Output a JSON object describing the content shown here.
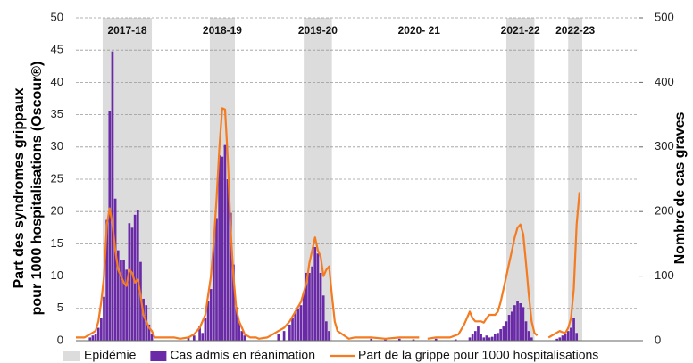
{
  "chart_data": {
    "type": "bar",
    "ylabel": [
      "Part des syndromes grippaux",
      "pour 1000 hospitalisations (Oscour®)"
    ],
    "y2label": "Nombre de cas graves",
    "xlim": [
      0,
      200
    ],
    "ylim": [
      0,
      50
    ],
    "yticks": [
      0,
      5,
      10,
      15,
      20,
      25,
      30,
      35,
      40,
      45,
      50
    ],
    "y2lim": [
      0,
      500
    ],
    "y2ticks": [
      0,
      100,
      200,
      300,
      400,
      500
    ],
    "grid": true,
    "legend": "bottom",
    "bands": {
      "name": "Epidémie",
      "color": "#dcdcdc",
      "periods": [
        {
          "label": "2017-18",
          "x": [
            9.5,
            27
          ]
        },
        {
          "label": "2018-19",
          "x": [
            47.6,
            56.5
          ]
        },
        {
          "label": "2019-20",
          "x": [
            81,
            91
          ]
        },
        {
          "label": "2020- 21",
          "x": null
        },
        {
          "label": "2021-22",
          "x": [
            153,
            163
          ]
        },
        {
          "label": "2022-23",
          "x": [
            175,
            180
          ]
        }
      ]
    },
    "series": [
      {
        "name": "Cas admis en réanimation",
        "type": "bar",
        "axis": "y2",
        "color": "#6a2aa8",
        "x": [
          5,
          6,
          7,
          8,
          9,
          10,
          11,
          12,
          13,
          14,
          15,
          16,
          17,
          18,
          19,
          20,
          21,
          22,
          23,
          24,
          25,
          26,
          27,
          40,
          42,
          44,
          45,
          46,
          47,
          48,
          49,
          50,
          51,
          52,
          53,
          54,
          55,
          56,
          57,
          58,
          59,
          60,
          72,
          74,
          76,
          77,
          78,
          79,
          80,
          81,
          82,
          83,
          84,
          85,
          86,
          87,
          88,
          89,
          90,
          105,
          110,
          115,
          120,
          128,
          135,
          140,
          141,
          142,
          143,
          144,
          145,
          146,
          147,
          148,
          149,
          150,
          151,
          152,
          153,
          154,
          155,
          156,
          157,
          158,
          159,
          160,
          161,
          162,
          171,
          172,
          173,
          174,
          175,
          176,
          177,
          178
        ],
        "values": [
          5,
          8,
          10,
          20,
          35,
          68,
          187,
          355,
          448,
          220,
          140,
          125,
          125,
          110,
          182,
          175,
          195,
          203,
          122,
          65,
          55,
          25,
          10,
          5,
          8,
          22,
          12,
          35,
          62,
          80,
          165,
          190,
          287,
          285,
          303,
          250,
          198,
          118,
          52,
          30,
          15,
          8,
          10,
          15,
          25,
          35,
          45,
          50,
          55,
          75,
          105,
          105,
          115,
          145,
          135,
          105,
          70,
          30,
          15,
          3,
          2,
          3,
          2,
          3,
          2,
          5,
          10,
          15,
          22,
          10,
          5,
          8,
          5,
          6,
          10,
          12,
          18,
          22,
          30,
          40,
          45,
          55,
          62,
          58,
          52,
          30,
          15,
          5,
          3,
          5,
          8,
          10,
          15,
          20,
          35,
          12
        ]
      },
      {
        "name": "Part de la grippe pour 1000 hospitalisations",
        "type": "line",
        "axis": "y",
        "color": "#f47b20",
        "x": [
          0,
          3,
          5,
          7,
          8,
          9,
          10,
          11,
          12,
          13,
          14,
          15,
          16,
          17,
          18,
          19,
          20,
          21,
          22,
          23,
          24,
          25,
          26,
          27,
          28,
          32,
          35,
          37,
          40,
          42,
          44,
          46,
          47,
          48,
          49,
          50,
          51,
          52,
          53,
          54,
          55,
          56,
          57,
          58,
          59,
          60,
          62,
          64,
          65,
          68,
          70,
          72,
          74,
          76,
          78,
          80,
          82,
          83,
          84,
          85,
          86,
          87,
          88,
          89,
          90,
          91,
          92,
          93,
          97,
          99,
          105,
          110,
          115,
          122,
          123,
          125,
          128,
          133,
          136,
          138,
          140,
          141,
          142,
          144,
          145,
          146,
          147,
          148,
          149,
          150,
          151,
          152,
          153,
          154,
          155,
          156,
          157,
          158,
          159,
          160,
          161,
          162,
          163,
          164,
          166,
          168,
          170,
          172,
          173,
          174,
          175,
          176,
          177,
          178,
          179
        ],
        "values": [
          0.5,
          0.5,
          1,
          1.5,
          3,
          6,
          10,
          18,
          20.5,
          18,
          14,
          11,
          10,
          9,
          8.5,
          11,
          10.5,
          9,
          9.5,
          7,
          4,
          3,
          2,
          1.5,
          0.5,
          0.5,
          0.5,
          0.3,
          0.5,
          1,
          2,
          4,
          7,
          10,
          15,
          22,
          30,
          36,
          35.8,
          28,
          17,
          10,
          5,
          3,
          2,
          1,
          0.5,
          0.5,
          0.3,
          0.5,
          1,
          1.5,
          2,
          3,
          4.5,
          6,
          9,
          12,
          14,
          16,
          14,
          13,
          10,
          11,
          11.5,
          7,
          3,
          1.5,
          0.3,
          0.5,
          0.5,
          0.3,
          0.5,
          0.5,
          null,
          0.3,
          0.5,
          0.5,
          1,
          2.5,
          4.5,
          3.5,
          3,
          3,
          2.8,
          3.5,
          4,
          4,
          4,
          4.5,
          6,
          8,
          10,
          12,
          14,
          16,
          17.5,
          18,
          16.5,
          12,
          7,
          3,
          1.2,
          0.8,
          null,
          0.5,
          1,
          1.5,
          1.3,
          1.2,
          2,
          3.5,
          8,
          18,
          23
        ]
      }
    ]
  }
}
